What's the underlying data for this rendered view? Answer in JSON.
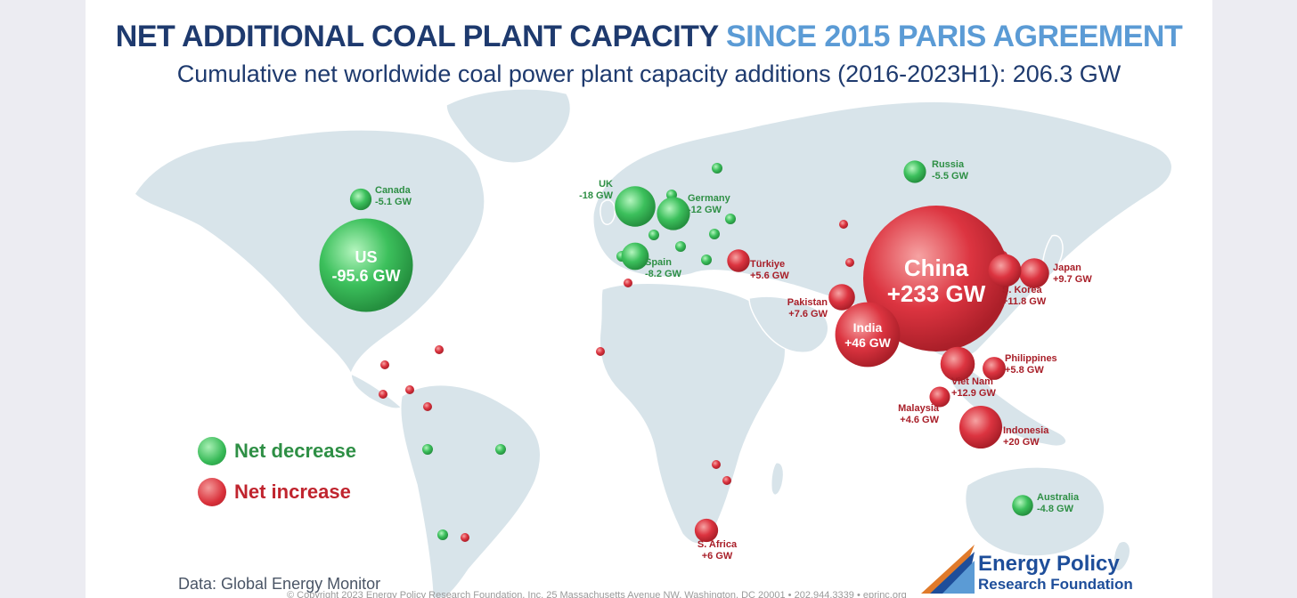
{
  "header": {
    "title_main": "NET ADDITIONAL COAL PLANT CAPACITY",
    "title_highlight": "SINCE 2015 PARIS AGREEMENT",
    "subtitle": "Cumulative net worldwide coal power plant capacity additions (2016-2023H1): 206.3 GW"
  },
  "colors": {
    "decrease": "#36b956",
    "increase": "#d9303a",
    "decrease_label": "#2e8f45",
    "increase_label": "#a81e28",
    "land": "#d8e4ea",
    "title": "#1e3a6e",
    "title_highlight": "#5b9bd5"
  },
  "map_data": {
    "unit": "GW",
    "countries": [
      {
        "name": "US",
        "label": "US",
        "value_text": "-95.6 GW",
        "value": -95.6
      },
      {
        "name": "Canada",
        "label": "Canada",
        "value_text": "-5.1 GW",
        "value": -5.1
      },
      {
        "name": "UK",
        "label": "UK",
        "value_text": "-18 GW",
        "value": -18
      },
      {
        "name": "Germany",
        "label": "Germany",
        "value_text": "-12 GW",
        "value": -12
      },
      {
        "name": "Spain",
        "label": "Spain",
        "value_text": "-8.2 GW",
        "value": -8.2
      },
      {
        "name": "Russia",
        "label": "Russia",
        "value_text": "-5.5 GW",
        "value": -5.5
      },
      {
        "name": "Australia",
        "label": "Australia",
        "value_text": "-4.8 GW",
        "value": -4.8
      },
      {
        "name": "China",
        "label": "China",
        "value_text": "+233 GW",
        "value": 233
      },
      {
        "name": "India",
        "label": "India",
        "value_text": "+46 GW",
        "value": 46
      },
      {
        "name": "Japan",
        "label": "Japan",
        "value_text": "+9.7 GW",
        "value": 9.7
      },
      {
        "name": "S. Korea",
        "label": "S. Korea",
        "value_text": "+11.8 GW",
        "value": 11.8
      },
      {
        "name": "Pakistan",
        "label": "Pakistan",
        "value_text": "+7.6 GW",
        "value": 7.6
      },
      {
        "name": "Türkiye",
        "label": "Türkiye",
        "value_text": "+5.6 GW",
        "value": 5.6
      },
      {
        "name": "Philippines",
        "label": "Philippines",
        "value_text": "+5.8 GW",
        "value": 5.8
      },
      {
        "name": "Viet Nam",
        "label": "Viet Nam",
        "value_text": "+12.9 GW",
        "value": 12.9
      },
      {
        "name": "Malaysia",
        "label": "Malaysia",
        "value_text": "+4.6 GW",
        "value": 4.6
      },
      {
        "name": "Indonesia",
        "label": "Indonesia",
        "value_text": "+20 GW",
        "value": 20
      },
      {
        "name": "S. Africa",
        "label": "S. Africa",
        "value_text": "+6 GW",
        "value": 6
      }
    ]
  },
  "legend": {
    "decrease": "Net decrease",
    "increase": "Net increase"
  },
  "footer": {
    "source": "Data: Global Energy Monitor",
    "copyright": "© Copyright 2023 Energy Policy Research Foundation, Inc. 25 Massachusetts Avenue NW, Washington, DC 20001 • 202.944.3339 • eprinc.org"
  },
  "logo": {
    "line1": "Energy Policy",
    "line2": "Research Foundation"
  }
}
